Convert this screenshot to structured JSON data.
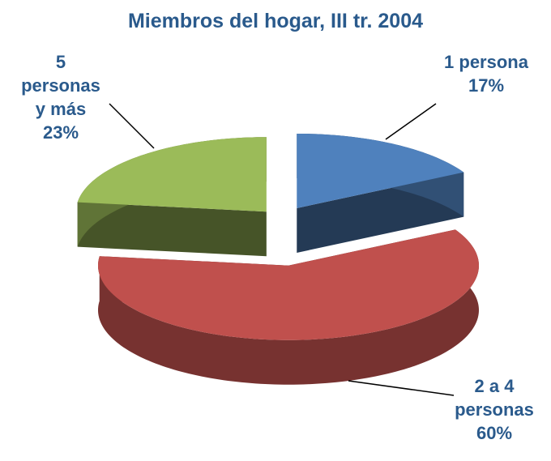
{
  "chart_data": {
    "type": "pie",
    "title": "Miembros del hogar, III tr. 2004",
    "categories": [
      "1 persona",
      "2 a 4 personas",
      "5 personas y más"
    ],
    "values": [
      17,
      60,
      23
    ],
    "value_labels": [
      "17%",
      "60%",
      "23%"
    ],
    "colors": [
      "#4f81bd",
      "#c0504d",
      "#9bbb59"
    ]
  }
}
